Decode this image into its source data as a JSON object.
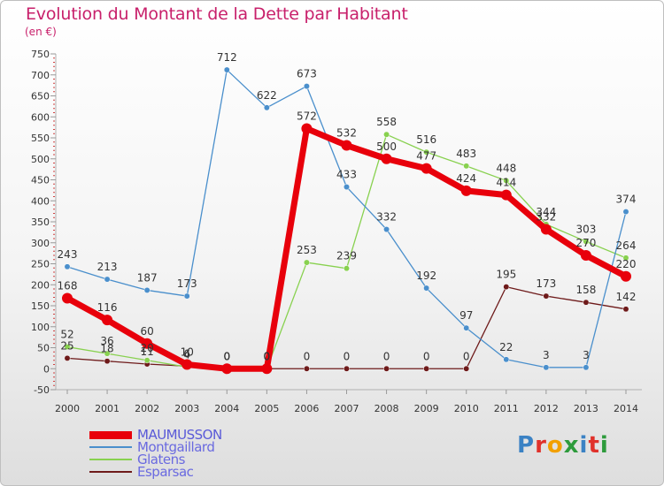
{
  "header": {
    "title": "Evolution du Montant de la Dette par Habitant",
    "subtitle": "(en €)"
  },
  "logo": {
    "text": "Proxiti",
    "colors": [
      "#3b82c4",
      "#e0312b",
      "#f2a000",
      "#2e9b3c",
      "#3b82c4",
      "#e0312b",
      "#2e9b3c"
    ]
  },
  "chart_data": {
    "type": "line",
    "x": [
      "2000",
      "2001",
      "2002",
      "2003",
      "2004",
      "2005",
      "2006",
      "2007",
      "2008",
      "2009",
      "2010",
      "2011",
      "2012",
      "2013",
      "2014"
    ],
    "ylim": [
      -50,
      750
    ],
    "yticks": [
      -50,
      0,
      50,
      100,
      150,
      200,
      250,
      300,
      350,
      400,
      450,
      500,
      550,
      600,
      650,
      700,
      750
    ],
    "grid": false,
    "legend_position": "bottom-left",
    "series": [
      {
        "name": "MAUMUSSON",
        "color": "#e8000b",
        "values": [
          168,
          116,
          60,
          10,
          0,
          0,
          572,
          532,
          500,
          477,
          424,
          414,
          332,
          270,
          220
        ],
        "labels": [
          "168",
          "116",
          "60",
          "10",
          "0",
          "0",
          "572",
          "532",
          "500",
          "477",
          "424",
          "414",
          "332",
          "270",
          "220"
        ]
      },
      {
        "name": "Montgaillard",
        "color": "#4a8fcc",
        "values": [
          243,
          213,
          187,
          173,
          712,
          622,
          673,
          433,
          332,
          192,
          97,
          22,
          3,
          3,
          374
        ],
        "labels": [
          "243",
          "213",
          "187",
          "173",
          "712",
          "622",
          "673",
          "433",
          "332",
          "192",
          "97",
          "22",
          "3",
          "3",
          "374"
        ]
      },
      {
        "name": "Glatens",
        "color": "#88d14f",
        "values": [
          52,
          36,
          20,
          4,
          0,
          0,
          253,
          239,
          558,
          516,
          483,
          448,
          344,
          303,
          264
        ],
        "labels": [
          "52",
          "36",
          "20",
          "4",
          "0",
          "0",
          "253",
          "239",
          "558",
          "516",
          "483",
          "448",
          "344",
          "303",
          "264"
        ]
      },
      {
        "name": "Esparsac",
        "color": "#6e1a1a",
        "values": [
          25,
          18,
          11,
          6,
          0,
          0,
          0,
          0,
          0,
          0,
          0,
          195,
          173,
          158,
          142
        ],
        "labels": [
          "25",
          "18",
          "11",
          "6",
          "0",
          "0",
          "0",
          "0",
          "0",
          "0",
          "0",
          "195",
          "173",
          "158",
          "142"
        ]
      }
    ]
  }
}
